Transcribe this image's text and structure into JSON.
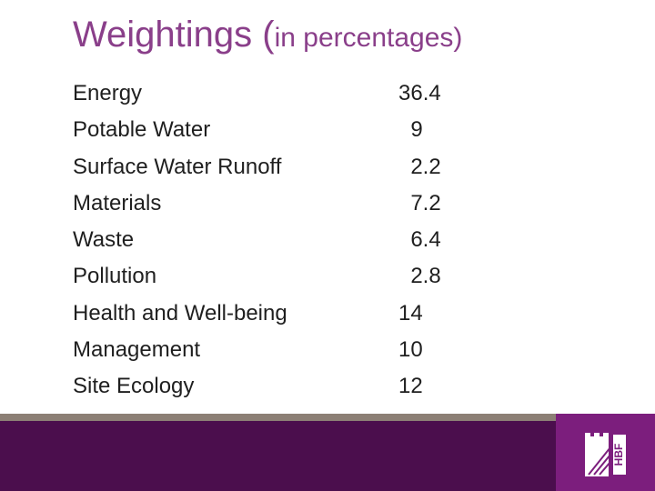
{
  "slide": {
    "title_main": "Weightings (",
    "title_sub": "in percentages",
    "title_close": ")"
  },
  "rows": [
    {
      "label": "Energy",
      "value": "36.4"
    },
    {
      "label": "Potable Water",
      "value": "  9"
    },
    {
      "label": "Surface Water Runoff",
      "value": "  2.2"
    },
    {
      "label": "Materials",
      "value": "  7.2"
    },
    {
      "label": "Waste",
      "value": "  6.4"
    },
    {
      "label": "Pollution",
      "value": "  2.8"
    },
    {
      "label": "Health and Well-being",
      "value": "14"
    },
    {
      "label": "Management",
      "value": "10"
    },
    {
      "label": "Site Ecology",
      "value": "12"
    }
  ],
  "footer": {
    "logo_text": "HBF",
    "colors": {
      "band": "#4b0e4d",
      "logo_bg": "#7c1e7d",
      "line": "#8c7f75",
      "title": "#8a3f8a"
    }
  }
}
